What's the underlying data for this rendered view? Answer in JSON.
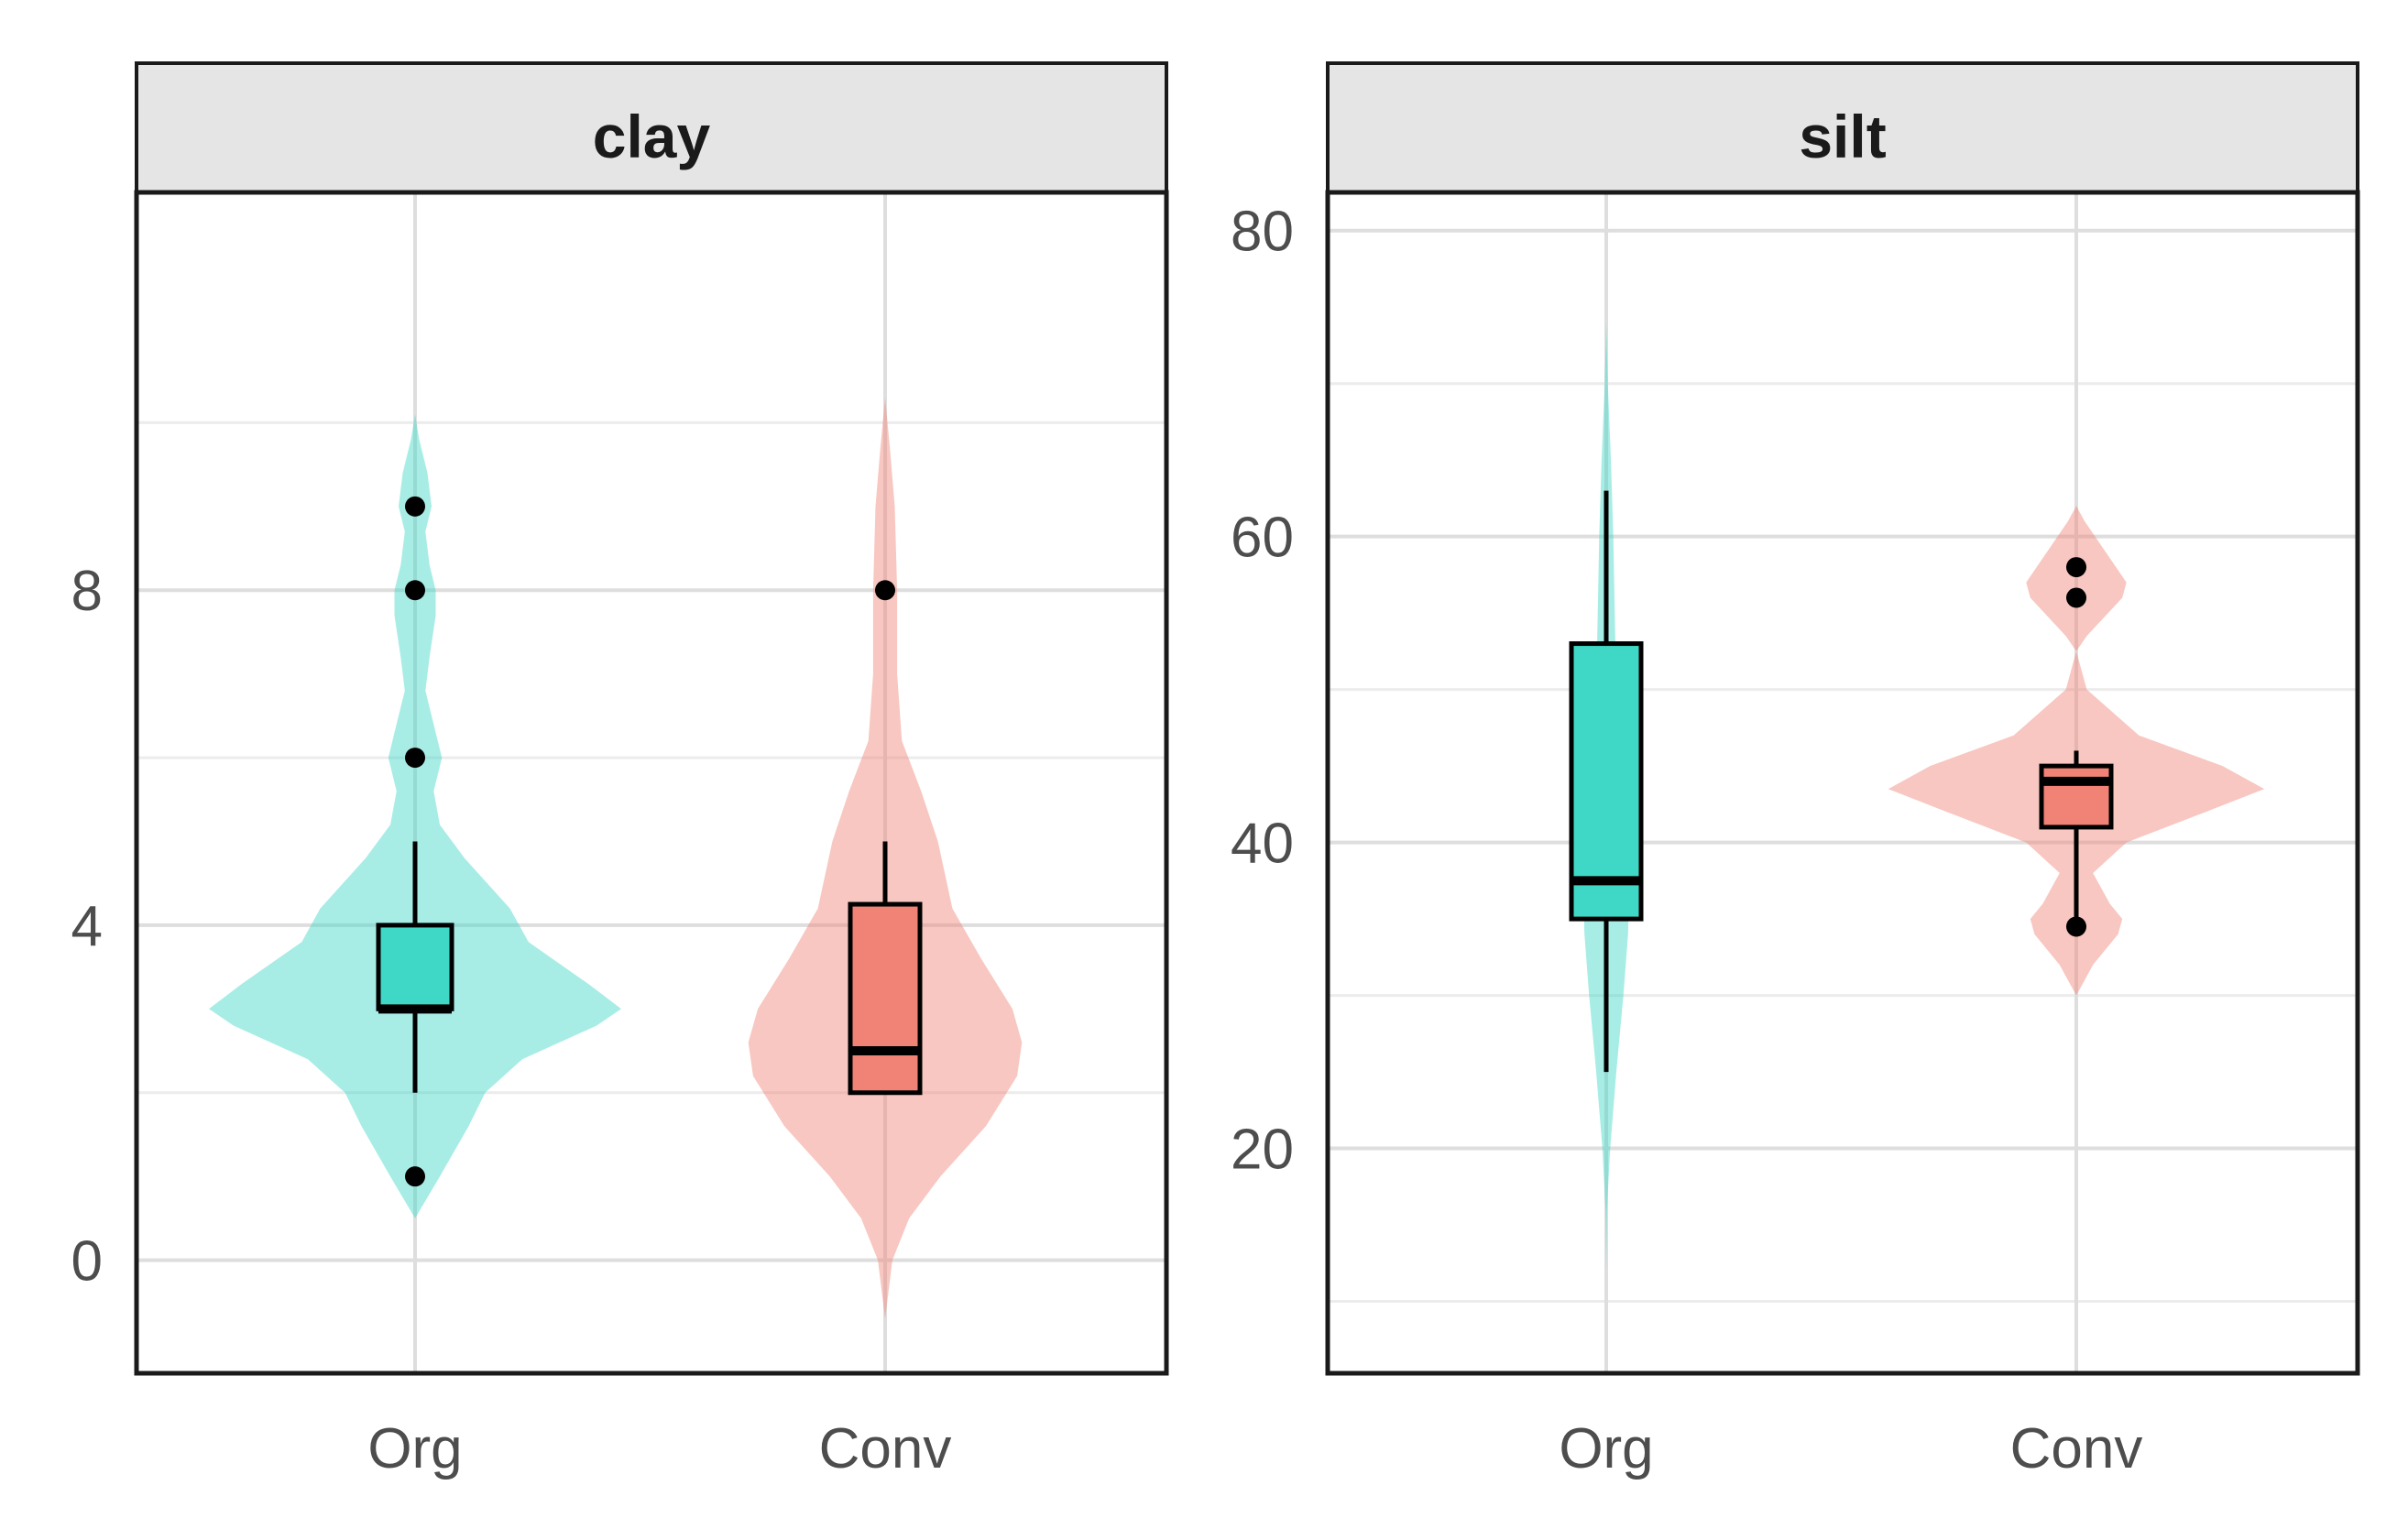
{
  "chart_data": [
    {
      "type": "violin",
      "panel_title": "clay",
      "categories": [
        "Org",
        "Conv"
      ],
      "y_ticks": [
        0,
        4,
        8
      ],
      "ylim": [
        -1.35,
        12.75
      ],
      "grid": true,
      "colors": {
        "Org": "#3fd8c6",
        "Conv": "#f08276"
      },
      "groups": [
        {
          "name": "Org",
          "box": {
            "q1": 3,
            "median": 3,
            "q3": 4,
            "whisker_low": 2,
            "whisker_high": 5
          },
          "outliers": [
            1,
            6,
            8,
            9
          ],
          "density": [
            [
              0.5,
              0.0
            ],
            [
              1.0,
              0.12
            ],
            [
              1.6,
              0.26
            ],
            [
              2.0,
              0.34
            ],
            [
              2.4,
              0.52
            ],
            [
              2.8,
              0.88
            ],
            [
              3.0,
              1.0
            ],
            [
              3.3,
              0.84
            ],
            [
              3.8,
              0.55
            ],
            [
              4.2,
              0.46
            ],
            [
              4.8,
              0.24
            ],
            [
              5.2,
              0.12
            ],
            [
              5.6,
              0.09
            ],
            [
              6.0,
              0.13
            ],
            [
              6.3,
              0.1
            ],
            [
              6.8,
              0.05
            ],
            [
              7.2,
              0.07
            ],
            [
              7.7,
              0.1
            ],
            [
              8.0,
              0.1
            ],
            [
              8.3,
              0.07
            ],
            [
              8.7,
              0.05
            ],
            [
              9.0,
              0.08
            ],
            [
              9.4,
              0.06
            ],
            [
              9.8,
              0.02
            ],
            [
              10.1,
              0.0
            ]
          ]
        },
        {
          "name": "Conv",
          "box": {
            "q1": 2,
            "median": 2.5,
            "q3": 4.25,
            "whisker_low": 2,
            "whisker_high": 5
          },
          "outliers": [
            8
          ],
          "density": [
            [
              -0.7,
              0.0
            ],
            [
              0.0,
              0.03
            ],
            [
              0.5,
              0.1
            ],
            [
              1.0,
              0.23
            ],
            [
              1.6,
              0.42
            ],
            [
              2.2,
              0.55
            ],
            [
              2.6,
              0.57
            ],
            [
              3.0,
              0.53
            ],
            [
              3.6,
              0.4
            ],
            [
              4.2,
              0.28
            ],
            [
              5.0,
              0.22
            ],
            [
              5.6,
              0.15
            ],
            [
              6.2,
              0.07
            ],
            [
              7.0,
              0.05
            ],
            [
              8.0,
              0.05
            ],
            [
              9.0,
              0.04
            ],
            [
              9.7,
              0.02
            ],
            [
              10.3,
              0.0
            ]
          ]
        }
      ]
    },
    {
      "type": "violin",
      "panel_title": "silt",
      "categories": [
        "Org",
        "Conv"
      ],
      "y_ticks": [
        20,
        40,
        60,
        80
      ],
      "ylim": [
        5.3,
        82.5
      ],
      "grid": true,
      "colors": {
        "Org": "#3fd8c6",
        "Conv": "#f08276"
      },
      "groups": [
        {
          "name": "Org",
          "box": {
            "q1": 35,
            "median": 37.5,
            "q3": 53,
            "whisker_low": 25,
            "whisker_high": 63
          },
          "outliers": [],
          "density": [
            [
              12,
              0.0
            ],
            [
              16,
              0.01
            ],
            [
              20,
              0.05
            ],
            [
              25,
              0.13
            ],
            [
              30,
              0.22
            ],
            [
              34,
              0.28
            ],
            [
              36,
              0.29
            ],
            [
              40,
              0.22
            ],
            [
              45,
              0.17
            ],
            [
              50,
              0.13
            ],
            [
              55,
              0.11
            ],
            [
              60,
              0.09
            ],
            [
              65,
              0.06
            ],
            [
              70,
              0.02
            ],
            [
              74,
              0.0
            ]
          ]
        },
        {
          "name": "Conv",
          "box": {
            "q1": 41,
            "median": 44,
            "q3": 45,
            "whisker_low": 34.5,
            "whisker_high": 46
          },
          "outliers": [
            34.5,
            56,
            58
          ],
          "density": [
            [
              30,
              0.0
            ],
            [
              32,
              0.08
            ],
            [
              34,
              0.2
            ],
            [
              35,
              0.22
            ],
            [
              36,
              0.16
            ],
            [
              38,
              0.08
            ],
            [
              40,
              0.24
            ],
            [
              42,
              0.62
            ],
            [
              43.5,
              0.9
            ],
            [
              45,
              0.7
            ],
            [
              47,
              0.3
            ],
            [
              50,
              0.05
            ],
            [
              52.5,
              0.0
            ],
            [
              53.5,
              0.05
            ],
            [
              56,
              0.22
            ],
            [
              57,
              0.24
            ],
            [
              59,
              0.14
            ],
            [
              61,
              0.04
            ],
            [
              62,
              0.0
            ]
          ]
        }
      ]
    }
  ]
}
